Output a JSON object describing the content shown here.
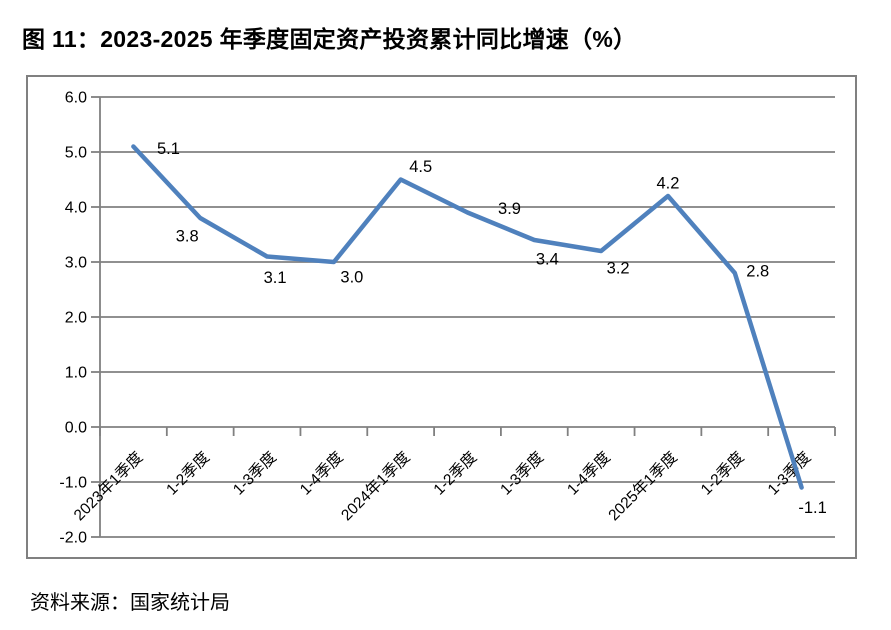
{
  "figure": {
    "title": "图 11：2023-2025 年季度固定资产投资累计同比增速（%）",
    "source": "资料来源：国家统计局"
  },
  "chart_data": {
    "type": "line",
    "title": "2023-2025 年季度固定资产投资累计同比增速（%）",
    "categories": [
      "2023年1季度",
      "1-2季度",
      "1-3季度",
      "1-4季度",
      "2024年1季度",
      "1-2季度",
      "1-3季度",
      "1-4季度",
      "2025年1季度",
      "1-2季度",
      "1-3季度"
    ],
    "values": [
      5.1,
      3.8,
      3.1,
      3.0,
      4.5,
      3.9,
      3.4,
      3.2,
      4.2,
      2.8,
      -1.1
    ],
    "data_labels": [
      "5.1",
      "3.8",
      "3.1",
      "3.0",
      "4.5",
      "3.9",
      "3.4",
      "3.2",
      "4.2",
      "2.8",
      "-1.1"
    ],
    "y_ticks": [
      6.0,
      5.0,
      4.0,
      3.0,
      2.0,
      1.0,
      0.0,
      -1.0,
      -2.0
    ],
    "y_tick_labels": [
      "6.0",
      "5.0",
      "4.0",
      "3.0",
      "2.0",
      "1.0",
      "0.0",
      "-1.0",
      "-2.0"
    ],
    "ylim": [
      -2.0,
      6.0
    ],
    "xlabel": "",
    "ylabel": "",
    "grid": true,
    "legend": "none",
    "line_color": "#4F81BD",
    "grid_color": "#808080",
    "axis_color": "#808080",
    "text_color": "#000000"
  }
}
